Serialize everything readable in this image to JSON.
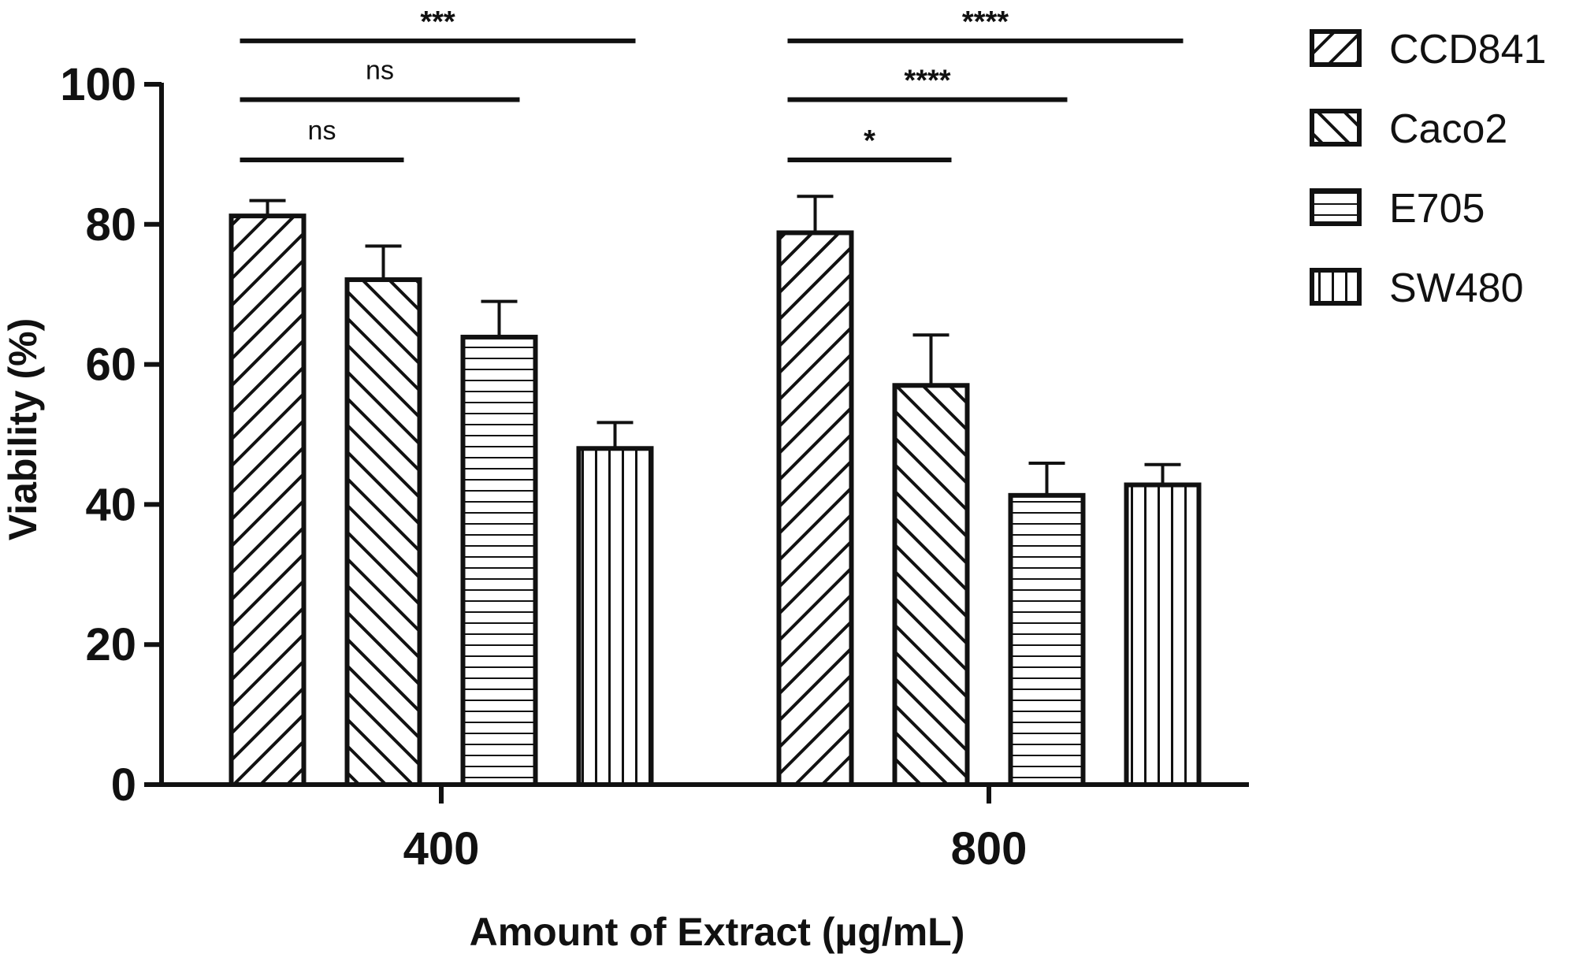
{
  "chart_data": {
    "type": "bar",
    "title": "",
    "xlabel": "Amount of Extract (µg/mL)",
    "ylabel": "Viability (%)",
    "ylim": [
      0,
      100
    ],
    "yticks": [
      "0",
      "20",
      "40",
      "60",
      "80",
      "100"
    ],
    "categories": [
      "400",
      "800"
    ],
    "series": [
      {
        "name": "CCD841",
        "pattern": "diagonal-forward",
        "values": [
          81.2,
          78.8
        ],
        "errors": [
          2.2,
          5.2
        ]
      },
      {
        "name": "Caco2",
        "pattern": "diagonal-backward",
        "values": [
          72.1,
          57.0
        ],
        "errors": [
          4.8,
          7.2
        ]
      },
      {
        "name": "E705",
        "pattern": "horizontal",
        "values": [
          63.9,
          41.3
        ],
        "errors": [
          5.1,
          4.6
        ]
      },
      {
        "name": "SW480",
        "pattern": "vertical",
        "values": [
          48.0,
          42.8
        ],
        "errors": [
          3.7,
          2.9
        ]
      }
    ],
    "significance": [
      {
        "category": "400",
        "from": "CCD841",
        "to": "Caco2",
        "label": "ns",
        "y": 89.2
      },
      {
        "category": "400",
        "from": "CCD841",
        "to": "E705",
        "label": "ns",
        "y": 97.8
      },
      {
        "category": "400",
        "from": "CCD841",
        "to": "SW480",
        "label": "***",
        "y": 106.2
      },
      {
        "category": "800",
        "from": "CCD841",
        "to": "Caco2",
        "label": "*",
        "y": 89.2
      },
      {
        "category": "800",
        "from": "CCD841",
        "to": "E705",
        "label": "****",
        "y": 97.8
      },
      {
        "category": "800",
        "from": "CCD841",
        "to": "SW480",
        "label": "****",
        "y": 106.2
      }
    ],
    "legend_position": "top-right",
    "grid": false,
    "colors": {
      "bar_fill": "#ffffff",
      "stroke": "#111111"
    }
  }
}
